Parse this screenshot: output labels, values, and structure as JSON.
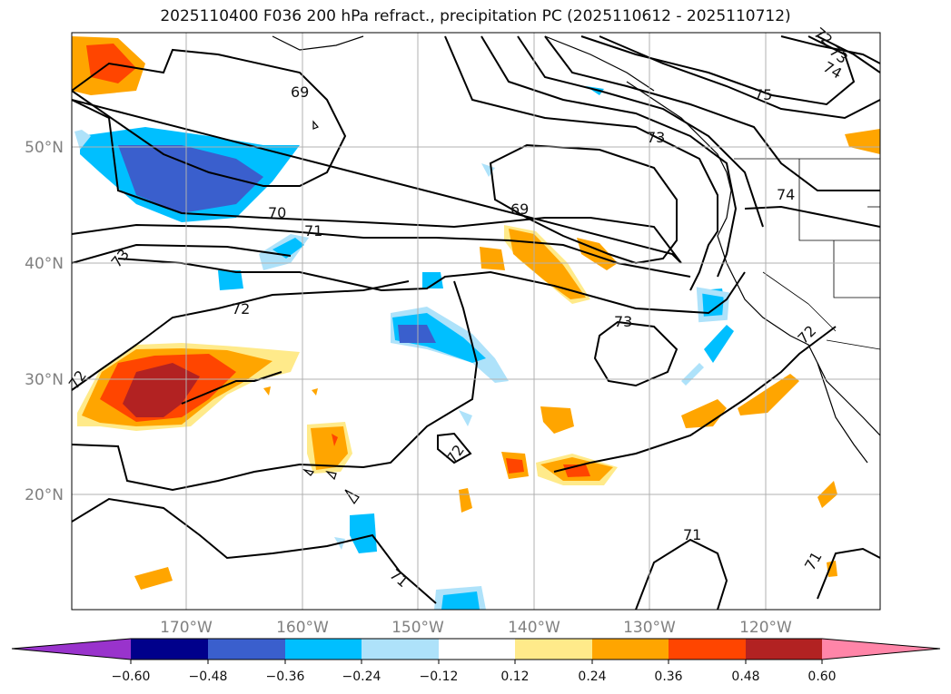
{
  "title": "2025110400 F036 200 hPa refract., precipitation PC (2025110612 - 2025110712)",
  "lon_ticks": [
    "170°W",
    "160°W",
    "150°W",
    "140°W",
    "130°W",
    "120°W"
  ],
  "lat_ticks": [
    "50°N",
    "40°N",
    "30°N",
    "20°N"
  ],
  "colorbar": {
    "ticks": [
      "−0.60",
      "−0.48",
      "−0.36",
      "−0.24",
      "−0.12",
      "0.12",
      "0.24",
      "0.36",
      "0.48",
      "0.60"
    ],
    "colors": [
      "#9933cc",
      "#00008b",
      "#3a5fcd",
      "#00bfff",
      "#aee2fa",
      "#ffffff",
      "#ffea8a",
      "#ffa500",
      "#ff4500",
      "#b22222",
      "#ff85a8"
    ]
  },
  "contour_labels": [
    "69",
    "70",
    "71",
    "72",
    "73",
    "74",
    "75",
    "69",
    "73",
    "74",
    "72",
    "72",
    "73",
    "71",
    "71",
    "71",
    "72",
    "72",
    "73"
  ]
}
